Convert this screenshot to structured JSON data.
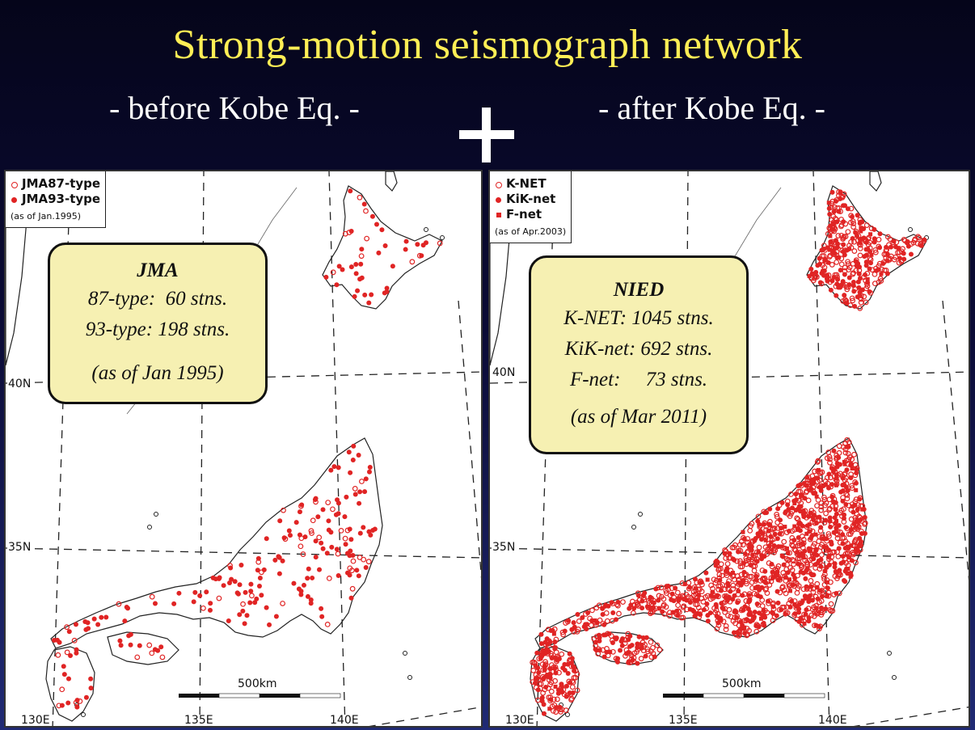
{
  "slide": {
    "title": "Strong-motion seismograph network",
    "subtitle_left": "- before Kobe Eq. -",
    "subtitle_right": "- after Kobe Eq. -",
    "divider_symbol": "plus-icon",
    "colors": {
      "title": "#ffee55",
      "station": "#e02424",
      "infobox": "#f6f0b2",
      "background": "#0b0b36"
    }
  },
  "left_map": {
    "legend": {
      "items": [
        {
          "symbol": "open-circle",
          "label": "JMA87-type"
        },
        {
          "symbol": "filled-circle",
          "label": "JMA93-type"
        }
      ],
      "as_of": "(as of Jan.1995)"
    },
    "infobox": {
      "title": "JMA",
      "lines": [
        "87-type:  60 stns.",
        "93-type: 198 stns."
      ],
      "as_of": "(as of Jan 1995)"
    },
    "lat_labels": {
      "lat40": "40N",
      "lat35": "35N"
    },
    "lon_labels": {
      "lon130": "130E",
      "lon135": "135E",
      "lon140": "140E"
    },
    "scale_label": "500km"
  },
  "right_map": {
    "legend": {
      "items": [
        {
          "symbol": "open-circle",
          "label": "K-NET"
        },
        {
          "symbol": "filled-circle",
          "label": "KiK-net"
        },
        {
          "symbol": "filled-square",
          "label": "F-net"
        }
      ],
      "as_of": "(as of Apr.2003)"
    },
    "infobox": {
      "title": "NIED",
      "lines": [
        "K-NET: 1045 stns.",
        "KiK-net: 692 stns.",
        "F-net:     73 stns."
      ],
      "as_of": "(as of Mar 2011)"
    },
    "lat_labels": {
      "lat40": "40N",
      "lat35": "35N"
    },
    "lon_labels": {
      "lon130": "130E",
      "lon135": "135E",
      "lon140": "140E"
    },
    "scale_label": "500km"
  }
}
